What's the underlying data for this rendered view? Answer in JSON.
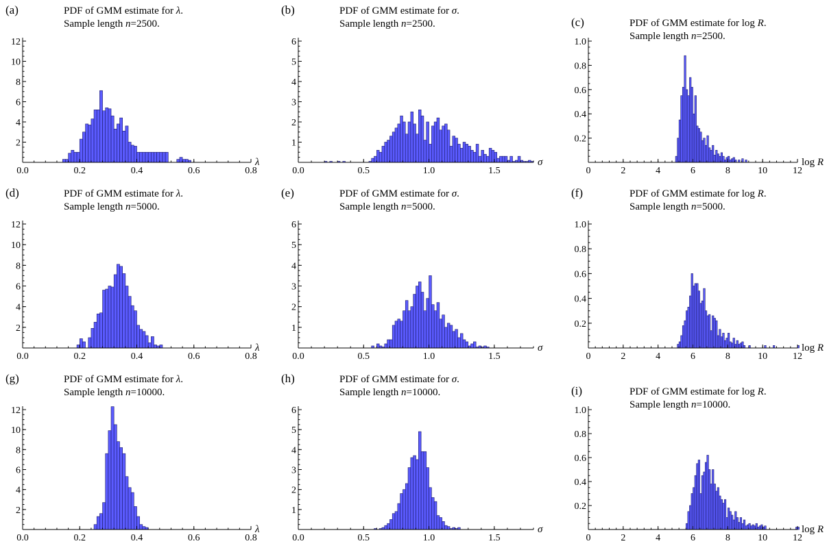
{
  "chart_data": [
    {
      "type": "bar",
      "panel": "(a)",
      "title_line1": "PDF of GMM estimate for λ.",
      "title_line2": "Sample length n=2500.",
      "xlabel": "λ",
      "xlim": [
        0,
        0.8
      ],
      "ylim": [
        0,
        12
      ],
      "xticks": [
        0.0,
        0.2,
        0.4,
        0.6,
        0.8
      ],
      "xtick_labels": [
        "0.0",
        "0.2",
        "0.4",
        "0.6",
        "0.8"
      ],
      "yticks": [
        2,
        4,
        6,
        8,
        10,
        12
      ],
      "ytick_labels": [
        "2",
        "4",
        "6",
        "8",
        "10",
        "12"
      ],
      "bin_start": 0.14,
      "bin_width": 0.01,
      "values": [
        0.3,
        0.3,
        0.9,
        1.2,
        1.0,
        1.0,
        2.3,
        3.0,
        3.8,
        3.7,
        4.3,
        5.2,
        5.2,
        7.1,
        5.1,
        5.4,
        5.3,
        4.6,
        3.3,
        3.8,
        4.4,
        3.1,
        3.6,
        2.0,
        1.7,
        1.6,
        1.0,
        1.0,
        1.0,
        1.0,
        1.0,
        1.0,
        1.0,
        1.0,
        1.0,
        1.0,
        1.0,
        0.0,
        0.0,
        0.0,
        0.3,
        0.5,
        0.3,
        0.3,
        0.2
      ]
    },
    {
      "type": "bar",
      "panel": "(b)",
      "title_line1": "PDF of GMM estimate for σ.",
      "title_line2": "Sample length n=2500.",
      "xlabel": "σ",
      "xlim": [
        0,
        1.8
      ],
      "ylim": [
        0,
        6
      ],
      "xticks": [
        0.0,
        0.5,
        1.0,
        1.5
      ],
      "xtick_labels": [
        "0.0",
        "0.5",
        "1.0",
        "1.5"
      ],
      "yticks": [
        1,
        2,
        3,
        4,
        5,
        6
      ],
      "ytick_labels": [
        "1",
        "2",
        "3",
        "4",
        "5",
        "6"
      ],
      "bin_start": 0.2,
      "bin_width": 0.02,
      "values": [
        0.05,
        0,
        0.05,
        0,
        0,
        0.05,
        0,
        0.05,
        0,
        0,
        0,
        0,
        0,
        0,
        0,
        0,
        0,
        0.05,
        0.2,
        0.3,
        0.6,
        0.5,
        0.8,
        1.0,
        1.1,
        1.3,
        1.5,
        1.7,
        1.9,
        2.3,
        2.0,
        1.4,
        2.0,
        2.5,
        1.9,
        1.4,
        2.6,
        2.3,
        1.1,
        2.0,
        0.9,
        1.8,
        2.0,
        2.2,
        1.6,
        1.8,
        1.9,
        1.6,
        0.8,
        1.3,
        1.2,
        0.9,
        0.7,
        1.0,
        0.9,
        0.8,
        0.6,
        0.5,
        0.9,
        0.3,
        0.6,
        0.4,
        0.3,
        0.7,
        0.6,
        0.5,
        0.2,
        0.3,
        0.3,
        0.3,
        0.1,
        0.3,
        0.05,
        0.1,
        0.3,
        0.1,
        0.05,
        0.05,
        0.1,
        0.05
      ]
    },
    {
      "type": "bar",
      "panel": "(c)",
      "title_line1": "PDF of GMM estimate for log R.",
      "title_line2": "Sample length n=2500.",
      "xlabel": "log R",
      "xlim": [
        0,
        12
      ],
      "ylim": [
        0,
        1.0
      ],
      "xticks": [
        0,
        2,
        4,
        6,
        8,
        10,
        12
      ],
      "xtick_labels": [
        "0",
        "2",
        "4",
        "6",
        "8",
        "10",
        "12"
      ],
      "yticks": [
        0.2,
        0.4,
        0.6,
        0.8,
        1.0
      ],
      "ytick_labels": [
        "0.2",
        "0.4",
        "0.6",
        "0.8",
        "1.0"
      ],
      "bin_start": 5.0,
      "bin_width": 0.1,
      "values": [
        0.05,
        0.2,
        0.35,
        0.55,
        0.62,
        0.88,
        0.6,
        0.55,
        0.7,
        0.62,
        0.4,
        0.55,
        0.3,
        0.28,
        0.25,
        0.18,
        0.2,
        0.14,
        0.22,
        0.12,
        0.1,
        0.14,
        0.06,
        0.1,
        0.07,
        0.05,
        0.08,
        0.05,
        0.02,
        0.04,
        0.05,
        0.02,
        0.03,
        0.04,
        0.02,
        0.0,
        0.02,
        0.0,
        0.03,
        0.0,
        0.02
      ]
    },
    {
      "type": "bar",
      "panel": "(d)",
      "title_line1": "PDF of GMM estimate for λ.",
      "title_line2": "Sample length n=5000.",
      "xlabel": "λ",
      "xlim": [
        0,
        0.8
      ],
      "ylim": [
        0,
        12
      ],
      "xticks": [
        0.0,
        0.2,
        0.4,
        0.6,
        0.8
      ],
      "xtick_labels": [
        "0.0",
        "0.2",
        "0.4",
        "0.6",
        "0.8"
      ],
      "yticks": [
        2,
        4,
        6,
        8,
        10,
        12
      ],
      "ytick_labels": [
        "2",
        "4",
        "6",
        "8",
        "10",
        "12"
      ],
      "bin_start": 0.19,
      "bin_width": 0.01,
      "values": [
        0.3,
        0.9,
        0.6,
        0.0,
        1.0,
        1.9,
        2.5,
        3.3,
        3.4,
        5.6,
        5.7,
        6.0,
        5.9,
        7.1,
        8.1,
        7.9,
        7.2,
        6.0,
        5.0,
        4.1,
        3.6,
        2.2,
        1.8,
        1.6,
        1.2,
        0.5,
        1.1,
        0.3,
        0.2,
        0.3
      ]
    },
    {
      "type": "bar",
      "panel": "(e)",
      "title_line1": "PDF of GMM estimate for σ.",
      "title_line2": "Sample length n=5000.",
      "xlabel": "σ",
      "xlim": [
        0,
        1.8
      ],
      "ylim": [
        0,
        6
      ],
      "xticks": [
        0.0,
        0.5,
        1.0,
        1.5
      ],
      "xtick_labels": [
        "0.0",
        "0.5",
        "1.0",
        "1.5"
      ],
      "yticks": [
        1,
        2,
        3,
        4,
        5,
        6
      ],
      "ytick_labels": [
        "1",
        "2",
        "3",
        "4",
        "5",
        "6"
      ],
      "bin_start": 0.56,
      "bin_width": 0.02,
      "values": [
        0.1,
        0,
        0.2,
        0.1,
        0.05,
        0.2,
        0.4,
        0.4,
        1.1,
        1.3,
        1.4,
        1.3,
        1.8,
        2.3,
        1.8,
        2.0,
        2.6,
        3.0,
        3.2,
        2.7,
        1.8,
        2.4,
        3.5,
        2.1,
        1.8,
        2.2,
        1.4,
        1.6,
        1.0,
        1.2,
        1.1,
        0.8,
        0.9,
        0.5,
        0.7,
        0.4,
        0.3,
        0.1,
        0.2,
        0.3,
        0.05,
        0.1,
        0.05,
        0.1,
        0.05
      ]
    },
    {
      "type": "bar",
      "panel": "(f)",
      "title_line1": "PDF of GMM estimate for log R.",
      "title_line2": "Sample length n=5000.",
      "xlabel": "log R",
      "xlim": [
        0,
        12
      ],
      "ylim": [
        0,
        1.0
      ],
      "xticks": [
        0,
        2,
        4,
        6,
        8,
        10,
        12
      ],
      "xtick_labels": [
        "0",
        "2",
        "4",
        "6",
        "8",
        "10",
        "12"
      ],
      "yticks": [
        0.2,
        0.4,
        0.6,
        0.8,
        1.0
      ],
      "ytick_labels": [
        "0.2",
        "0.4",
        "0.6",
        "0.8",
        "1.0"
      ],
      "bin_start": 5.1,
      "bin_width": 0.1,
      "values": [
        0.03,
        0.05,
        0.1,
        0.18,
        0.22,
        0.3,
        0.33,
        0.42,
        0.6,
        0.5,
        0.52,
        0.52,
        0.46,
        0.36,
        0.38,
        0.48,
        0.3,
        0.26,
        0.27,
        0.14,
        0.26,
        0.24,
        0.22,
        0.1,
        0.15,
        0.09,
        0.12,
        0.06,
        0.08,
        0.12,
        0.05,
        0.04,
        0.08,
        0.03,
        0.06,
        0.03,
        0.04,
        0.05,
        0.02,
        0.0,
        0.0,
        0.02,
        0.0,
        0.0,
        0.0,
        0.0,
        0.0,
        0.0,
        0.0,
        0.0,
        0.02,
        0.0,
        0.0,
        0.0,
        0.0,
        0.02,
        0.0,
        0.0,
        0.0,
        0.0,
        0.0,
        0.0,
        0.0,
        0.0,
        0.0,
        0.0,
        0.0,
        0.0,
        0.0,
        0.02
      ]
    },
    {
      "type": "bar",
      "panel": "(g)",
      "title_line1": "PDF of GMM estimate for λ.",
      "title_line2": "Sample length n=10000.",
      "xlabel": "λ",
      "xlim": [
        0,
        0.8
      ],
      "ylim": [
        0,
        12
      ],
      "xticks": [
        0.0,
        0.2,
        0.4,
        0.6,
        0.8
      ],
      "xtick_labels": [
        "0.0",
        "0.2",
        "0.4",
        "0.6",
        "0.8"
      ],
      "yticks": [
        2,
        4,
        6,
        8,
        10,
        12
      ],
      "ytick_labels": [
        "2",
        "4",
        "6",
        "8",
        "10",
        "12"
      ],
      "bin_start": 0.25,
      "bin_width": 0.01,
      "values": [
        0.5,
        1.3,
        1.6,
        2.7,
        7.6,
        9.9,
        12.3,
        10.5,
        8.8,
        8.2,
        7.6,
        5.3,
        4.2,
        3.7,
        2.3,
        1.3,
        0.5,
        0.3,
        0.2
      ]
    },
    {
      "type": "bar",
      "panel": "(h)",
      "title_line1": "PDF of GMM estimate for σ.",
      "title_line2": "Sample length n=10000.",
      "xlabel": "σ",
      "xlim": [
        0,
        1.8
      ],
      "ylim": [
        0,
        6
      ],
      "xticks": [
        0.0,
        0.5,
        1.0,
        1.5
      ],
      "xtick_labels": [
        "0.0",
        "0.5",
        "1.0",
        "1.5"
      ],
      "yticks": [
        1,
        2,
        3,
        4,
        5,
        6
      ],
      "ytick_labels": [
        "1",
        "2",
        "3",
        "4",
        "5",
        "6"
      ],
      "bin_start": 0.58,
      "bin_width": 0.02,
      "values": [
        0.05,
        0.0,
        0.05,
        0.1,
        0.2,
        0.3,
        0.5,
        0.8,
        0.9,
        1.3,
        1.8,
        2.0,
        2.3,
        3.1,
        3.6,
        3.7,
        3.5,
        4.9,
        3.9,
        3.9,
        3.1,
        2.1,
        1.6,
        1.4,
        0.7,
        0.6,
        0.4,
        0.2,
        0.15,
        0.05,
        0.1,
        0.05,
        0.1
      ]
    },
    {
      "type": "bar",
      "panel": "(i)",
      "title_line1": "PDF of GMM estimate for log R.",
      "title_line2": "Sample length n=10000.",
      "xlabel": "log R",
      "xlim": [
        0,
        12
      ],
      "ylim": [
        0,
        1.0
      ],
      "xticks": [
        0,
        2,
        4,
        6,
        8,
        10,
        12
      ],
      "xtick_labels": [
        "0",
        "2",
        "4",
        "6",
        "8",
        "10",
        "12"
      ],
      "yticks": [
        0.2,
        0.4,
        0.6,
        0.8,
        1.0
      ],
      "ytick_labels": [
        "0.2",
        "0.4",
        "0.6",
        "0.8",
        "1.0"
      ],
      "bin_start": 5.6,
      "bin_width": 0.1,
      "values": [
        0.05,
        0.15,
        0.2,
        0.3,
        0.35,
        0.45,
        0.55,
        0.58,
        0.3,
        0.45,
        0.48,
        0.56,
        0.62,
        0.5,
        0.38,
        0.5,
        0.38,
        0.32,
        0.35,
        0.28,
        0.25,
        0.22,
        0.25,
        0.1,
        0.18,
        0.15,
        0.12,
        0.08,
        0.15,
        0.1,
        0.06,
        0.1,
        0.05,
        0.08,
        0.03,
        0.04,
        0.05,
        0.03,
        0.04,
        0.03,
        0.05,
        0.02,
        0.03,
        0.04,
        0.02,
        0.03,
        0.0,
        0.0,
        0.0,
        0.0,
        0.0,
        0.0,
        0.0,
        0.0,
        0.0,
        0.0,
        0.0,
        0.0,
        0.0,
        0.0,
        0.0,
        0.0,
        0.0,
        0.02,
        0.02
      ]
    }
  ]
}
